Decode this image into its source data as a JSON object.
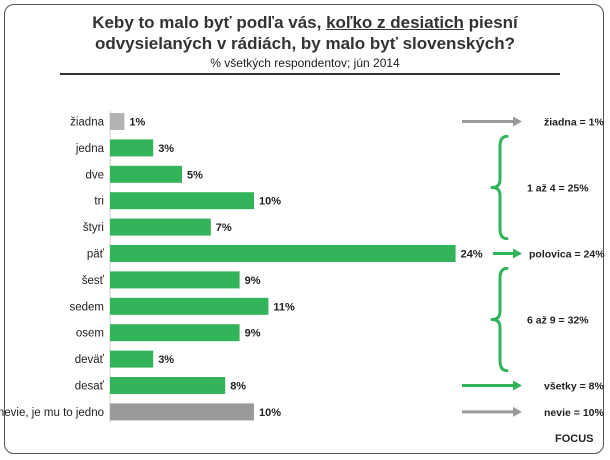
{
  "chart_data": {
    "type": "bar",
    "orientation": "horizontal",
    "title_pre": "Keby to malo byť podľa vás, ",
    "title_underlined": "koľko z desiatich",
    "title_post": " piesní",
    "title_line2": "odvysielaných v rádiách, by malo byť slovenských?",
    "subtitle": "% všetkých respondentov; jún 2014",
    "categories": [
      "žiadna",
      "jedna",
      "dve",
      "tri",
      "štyri",
      "päť",
      "šesť",
      "sedem",
      "osem",
      "deväť",
      "desať",
      "nevie, je mu to jedno"
    ],
    "values": [
      1,
      3,
      5,
      10,
      7,
      24,
      9,
      11,
      9,
      3,
      8,
      10
    ],
    "value_labels": [
      "1%",
      "3%",
      "5%",
      "10%",
      "7%",
      "24%",
      "9%",
      "11%",
      "9%",
      "3%",
      "8%",
      "10%"
    ],
    "bar_colors": [
      "#b3b3b3",
      "#33b45a",
      "#33b45a",
      "#33b45a",
      "#33b45a",
      "#33b45a",
      "#33b45a",
      "#33b45a",
      "#33b45a",
      "#33b45a",
      "#33b45a",
      "#9a9a9a"
    ],
    "annotations": [
      {
        "kind": "arrow",
        "row": 0,
        "color": "#9a9a9a",
        "text": "žiadna = 1%"
      },
      {
        "kind": "brace",
        "from": 1,
        "to": 4,
        "color": "#33b45a",
        "text": "1 až 4 = 25%"
      },
      {
        "kind": "arrow",
        "row": 5,
        "color": "#33b45a",
        "text": "polovica = 24%"
      },
      {
        "kind": "brace",
        "from": 6,
        "to": 9,
        "color": "#33b45a",
        "text": "6 až 9 = 32%"
      },
      {
        "kind": "arrow",
        "row": 10,
        "color": "#33b45a",
        "text": "všetky = 8%"
      },
      {
        "kind": "arrow",
        "row": 11,
        "color": "#9a9a9a",
        "text": "nevie = 10%"
      }
    ]
  },
  "brand": "FOCUS"
}
